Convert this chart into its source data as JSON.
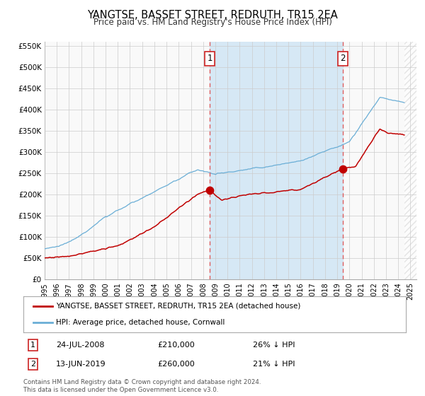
{
  "title": "YANGTSE, BASSET STREET, REDRUTH, TR15 2EA",
  "subtitle": "Price paid vs. HM Land Registry's House Price Index (HPI)",
  "ylim": [
    0,
    560000
  ],
  "yticks": [
    0,
    50000,
    100000,
    150000,
    200000,
    250000,
    300000,
    350000,
    400000,
    450000,
    500000,
    550000
  ],
  "ytick_labels": [
    "£0",
    "£50K",
    "£100K",
    "£150K",
    "£200K",
    "£250K",
    "£300K",
    "£350K",
    "£400K",
    "£450K",
    "£500K",
    "£550K"
  ],
  "xlim_start": 1995.0,
  "xlim_end": 2025.5,
  "data_end": 2024.5,
  "xticks": [
    1995,
    1996,
    1997,
    1998,
    1999,
    2000,
    2001,
    2002,
    2003,
    2004,
    2005,
    2006,
    2007,
    2008,
    2009,
    2010,
    2011,
    2012,
    2013,
    2014,
    2015,
    2016,
    2017,
    2018,
    2019,
    2020,
    2021,
    2022,
    2023,
    2024,
    2025
  ],
  "hpi_color": "#6aaed6",
  "price_color": "#c00000",
  "marker_color": "#c00000",
  "vline_color": "#e06060",
  "shade_color": "#d6e8f5",
  "grid_color": "#cccccc",
  "bg_color": "#f9f9f9",
  "hatch_color": "#cccccc",
  "event1_x": 2008.55,
  "event1_y_price": 210000,
  "event2_x": 2019.45,
  "event2_y_price": 260000,
  "legend_price_label": "YANGTSE, BASSET STREET, REDRUTH, TR15 2EA (detached house)",
  "legend_hpi_label": "HPI: Average price, detached house, Cornwall",
  "note1_num": "1",
  "note1_date": "24-JUL-2008",
  "note1_price": "£210,000",
  "note1_hpi": "26% ↓ HPI",
  "note2_num": "2",
  "note2_date": "13-JUN-2019",
  "note2_price": "£260,000",
  "note2_hpi": "21% ↓ HPI",
  "footer": "Contains HM Land Registry data © Crown copyright and database right 2024.\nThis data is licensed under the Open Government Licence v3.0."
}
